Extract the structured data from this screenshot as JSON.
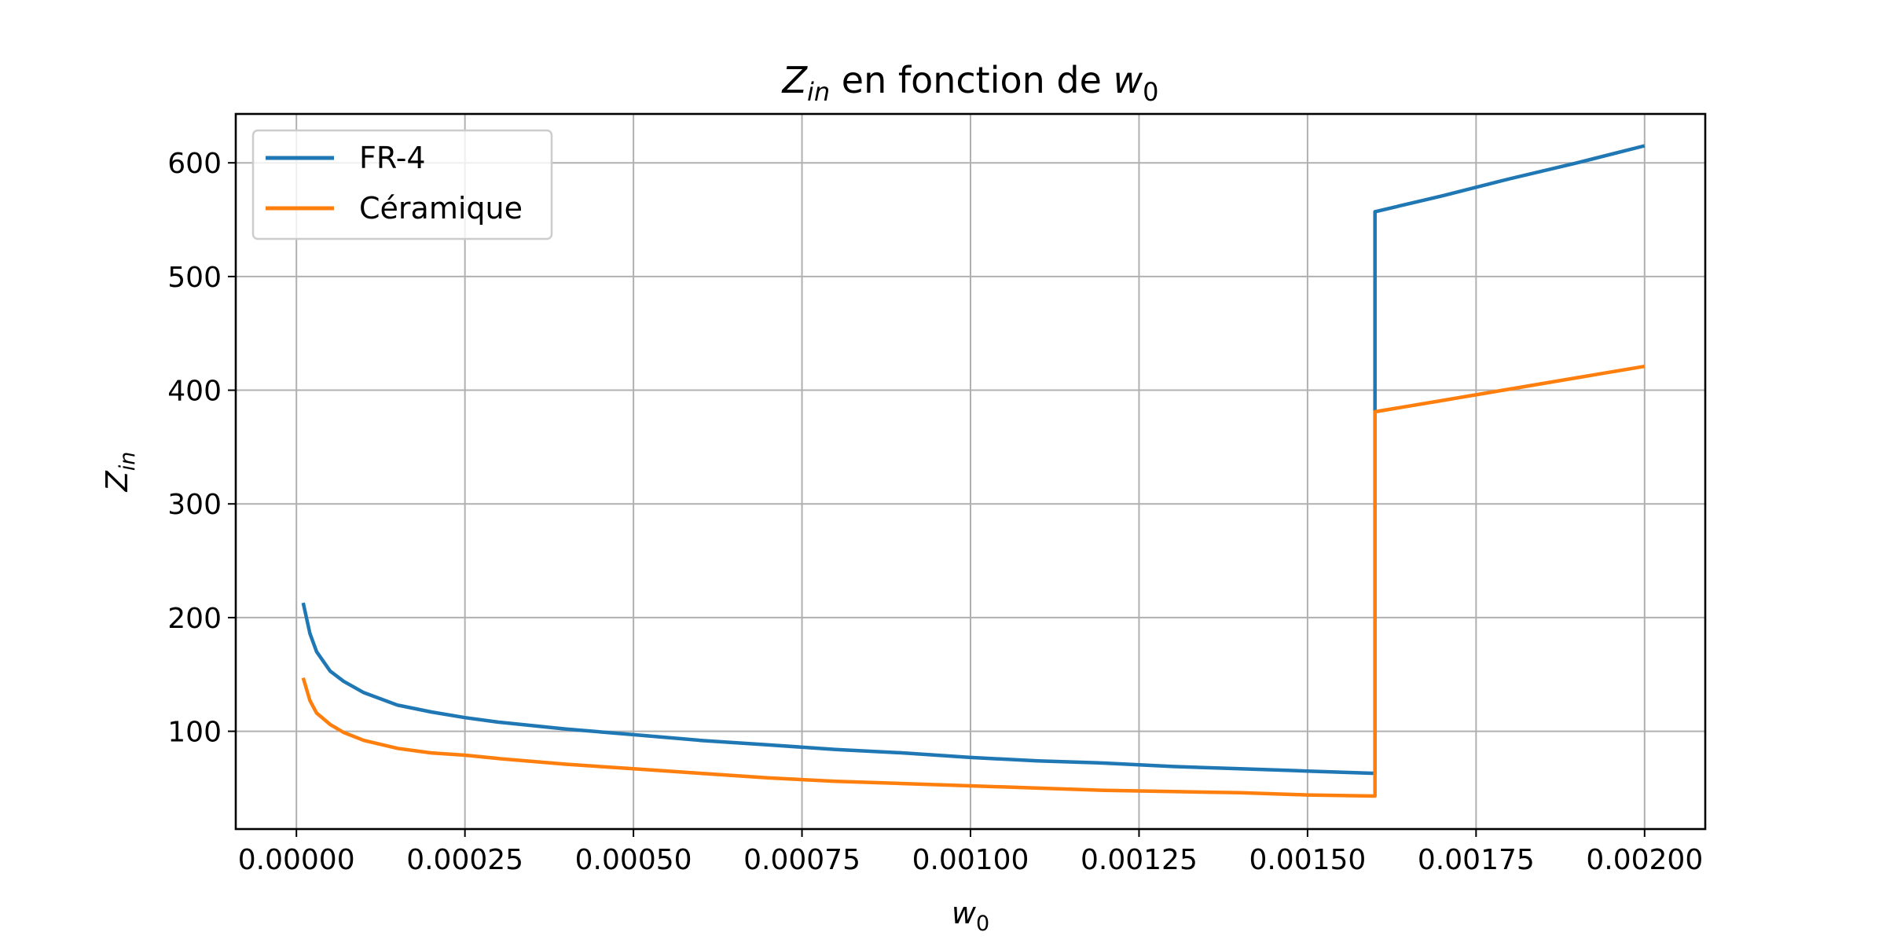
{
  "chart_data": {
    "type": "line",
    "title": {
      "main": "Z",
      "main_sub": "in",
      "middle": " en fonction de ",
      "var": "w",
      "var_sub": "0"
    },
    "xlabel": {
      "main": "w",
      "sub": "0"
    },
    "ylabel": {
      "main": "Z",
      "sub": "in"
    },
    "xlim": [
      -9e-05,
      0.00209
    ],
    "ylim": [
      14,
      643
    ],
    "xticks": [
      0,
      0.00025,
      0.0005,
      0.00075,
      0.001,
      0.00125,
      0.0015,
      0.00175,
      0.002
    ],
    "xtick_labels": [
      "0.00000",
      "0.00025",
      "0.00050",
      "0.00075",
      "0.00100",
      "0.00125",
      "0.00150",
      "0.00175",
      "0.00200"
    ],
    "yticks": [
      100,
      200,
      300,
      400,
      500,
      600
    ],
    "ytick_labels": [
      "100",
      "200",
      "300",
      "400",
      "500",
      "600"
    ],
    "grid": true,
    "legend_position": "upper-left",
    "series": [
      {
        "name": "FR-4",
        "color": "#1f77b4",
        "x": [
          1e-05,
          2e-05,
          3e-05,
          5e-05,
          7e-05,
          0.0001,
          0.00015,
          0.0002,
          0.00025,
          0.0003,
          0.0004,
          0.0005,
          0.0006,
          0.0007,
          0.0008,
          0.0009,
          0.001,
          0.0011,
          0.0012,
          0.0013,
          0.0014,
          0.0015,
          0.0016,
          0.0016,
          0.0016,
          0.0017,
          0.0018,
          0.0019,
          0.002
        ],
        "y": [
          213,
          186,
          170,
          153,
          144,
          134,
          123,
          117,
          112,
          108,
          102,
          97,
          92,
          88,
          84,
          81,
          77,
          74,
          72,
          69,
          67,
          65,
          63,
          380,
          557,
          571,
          586,
          600,
          615
        ]
      },
      {
        "name": "Céramique",
        "color": "#ff7f0e",
        "x": [
          1e-05,
          2e-05,
          3e-05,
          5e-05,
          7e-05,
          0.0001,
          0.00015,
          0.0002,
          0.00025,
          0.0003,
          0.0004,
          0.0005,
          0.0006,
          0.0007,
          0.0008,
          0.0009,
          0.001,
          0.0011,
          0.0012,
          0.0013,
          0.0014,
          0.0015,
          0.0016,
          0.0016,
          0.0017,
          0.0018,
          0.0019,
          0.002
        ],
        "y": [
          147,
          127,
          116,
          106,
          99,
          92,
          85,
          81,
          79,
          76,
          71,
          67,
          63,
          59,
          56,
          54,
          52,
          50,
          48,
          47,
          46,
          44,
          43,
          381,
          391,
          401,
          411,
          421
        ]
      }
    ]
  }
}
